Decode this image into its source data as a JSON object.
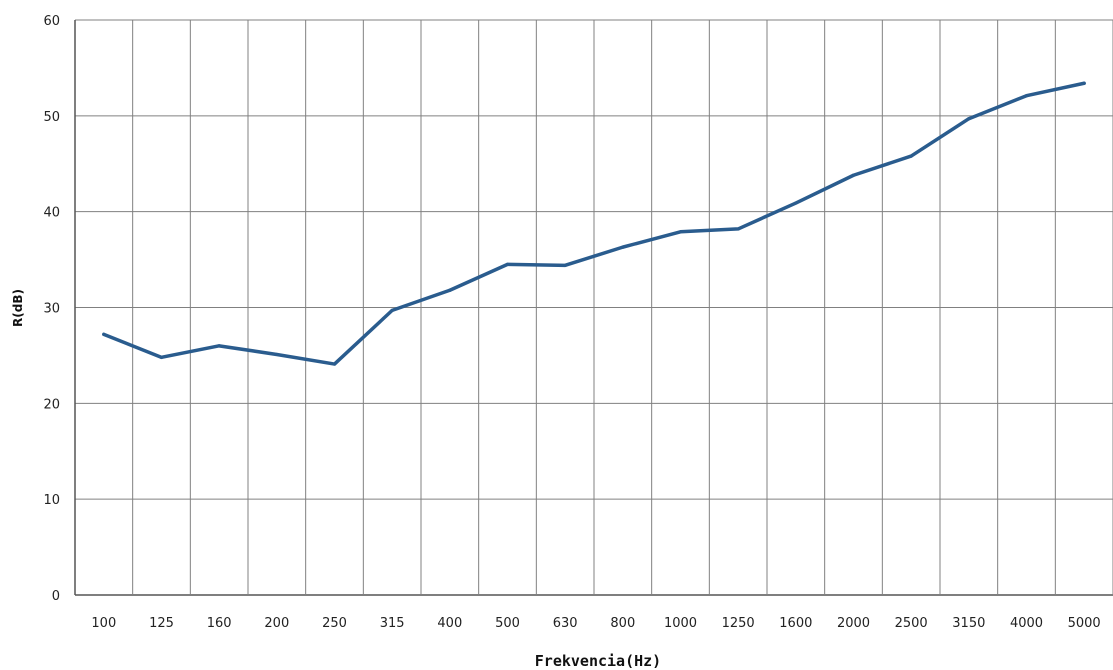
{
  "chart_data": {
    "type": "line",
    "title": "",
    "xlabel": "Frekvencia(Hz)",
    "ylabel": "R(dB)",
    "categories": [
      "100",
      "125",
      "160",
      "200",
      "250",
      "315",
      "400",
      "500",
      "630",
      "800",
      "1000",
      "1250",
      "1600",
      "2000",
      "2500",
      "3150",
      "4000",
      "5000"
    ],
    "series": [
      {
        "values": [
          27.2,
          24.8,
          26.0,
          25.1,
          24.1,
          29.7,
          31.8,
          34.5,
          34.4,
          36.3,
          37.9,
          38.2,
          40.9,
          43.8,
          45.8,
          49.7,
          52.1,
          53.4
        ],
        "color": "#2a5c8e"
      }
    ],
    "ylim": [
      0,
      60
    ],
    "yticks": [
      0,
      10,
      20,
      30,
      40,
      50,
      60
    ],
    "grid": true,
    "legend": "none"
  }
}
